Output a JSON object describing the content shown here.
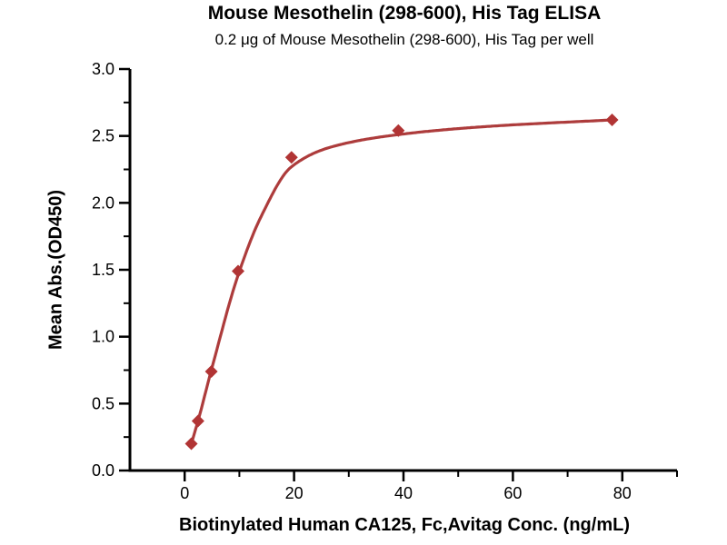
{
  "chart_data": {
    "type": "scatter",
    "title": "Mouse Mesothelin (298-600), His Tag ELISA",
    "subtitle": "0.2 μg of Mouse Mesothelin (298-600), His Tag per well",
    "xlabel": "Biotinylated Human CA125, Fc,Avitag Conc. (ng/mL)",
    "ylabel": "Mean Abs.(OD450)",
    "xlim": [
      -10,
      90
    ],
    "ylim": [
      0,
      3
    ],
    "x_major_ticks": [
      0,
      20,
      40,
      60,
      80
    ],
    "x_minor_ticks": [
      10,
      30,
      50,
      70,
      90
    ],
    "y_major_ticks": [
      0,
      0.5,
      1.0,
      1.5,
      2.0,
      2.5,
      3.0
    ],
    "y_minor_ticks": [
      0.25,
      0.75,
      1.25,
      1.75,
      2.25,
      2.75
    ],
    "grid": false,
    "legend_position": "none",
    "axis_color": "#000000",
    "series": [
      {
        "marker": "diamond",
        "marker_color": "#b13434",
        "line_color": "#ad3c3c",
        "x": [
          1.22,
          2.44,
          4.88,
          9.77,
          19.53,
          39.06,
          78.13
        ],
        "y": [
          0.2,
          0.37,
          0.74,
          1.49,
          2.34,
          2.54,
          2.62
        ],
        "fit_curve_points": {
          "x": [
            1.22,
            2.44,
            4.88,
            9.77,
            14.0,
            19.53,
            27.0,
            39.06,
            55.0,
            78.13
          ],
          "y": [
            0.2,
            0.37,
            0.75,
            1.46,
            1.9,
            2.27,
            2.42,
            2.51,
            2.57,
            2.62
          ]
        }
      }
    ]
  }
}
